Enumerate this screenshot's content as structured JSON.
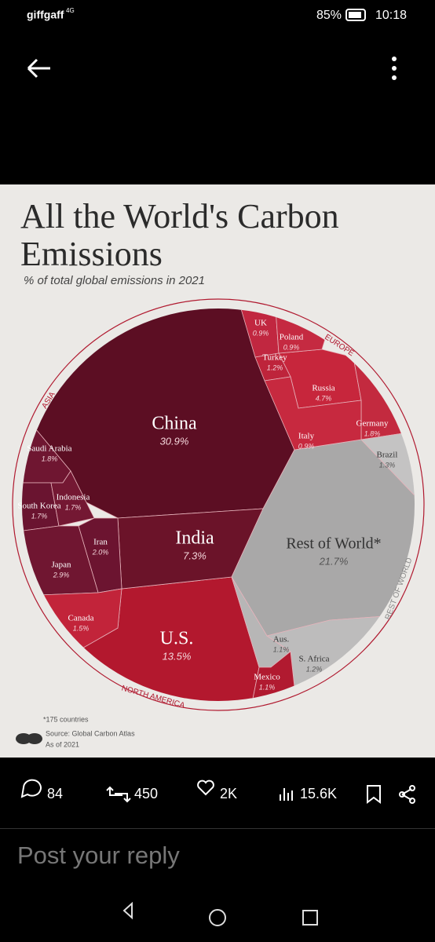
{
  "status_bar": {
    "carrier": "giffgaff",
    "network": "4G",
    "battery": "85%",
    "time": "10:18"
  },
  "chart_data": {
    "type": "voronoi",
    "title": "All the World's Carbon Emissions",
    "subtitle": "% of total global emissions in 2021",
    "categories": [
      "China",
      "U.S.",
      "India",
      "Rest of World*",
      "Russia",
      "Saudi Arabia",
      "South Korea",
      "Indonesia",
      "Iran",
      "Japan",
      "Canada",
      "Germany",
      "Brazil",
      "Aus.",
      "S. Africa",
      "Mexico",
      "UK",
      "Poland",
      "Turkey",
      "Italy"
    ],
    "values": [
      30.9,
      13.5,
      7.3,
      21.7,
      4.7,
      1.8,
      1.7,
      1.7,
      2.0,
      2.9,
      1.5,
      1.8,
      1.3,
      1.1,
      1.2,
      1.1,
      0.9,
      0.9,
      1.2,
      0.9
    ],
    "value_labels": [
      "30.9%",
      "13.5%",
      "7.3%",
      "21.7%",
      "4.7%",
      "1.8%",
      "1.7%",
      "1.7%",
      "2.0%",
      "2.9%",
      "1.5%",
      "1.8%",
      "1.3%",
      "1.1%",
      "1.2%",
      "1.1%",
      "0.9%",
      "0.9%",
      "1.2%",
      "0.9%"
    ],
    "colors": [
      "#5c0e23",
      "#b3182e",
      "#6b1329",
      "#a9a8a8",
      "#c7263c",
      "#6f1631",
      "#6a1430",
      "#741833",
      "#6c1430",
      "#701631",
      "#c2243a",
      "#c32a3f",
      "#c4c3c3",
      "#b7b6b6",
      "#bdbcbc",
      "#b11a30",
      "#c12740",
      "#c52a41",
      "#be243b",
      "#c7293f"
    ],
    "regions": [
      "ASIA",
      "EUROPE",
      "REST OF WORLD",
      "NORTH AMERICA"
    ],
    "footnote": "*175 countries",
    "source": "Source: Global Carbon Atlas",
    "as_of": "As of 2021"
  },
  "actions": {
    "replies": "84",
    "reposts": "450",
    "likes": "2K",
    "views": "15.6K"
  },
  "reply_placeholder": "Post your reply"
}
